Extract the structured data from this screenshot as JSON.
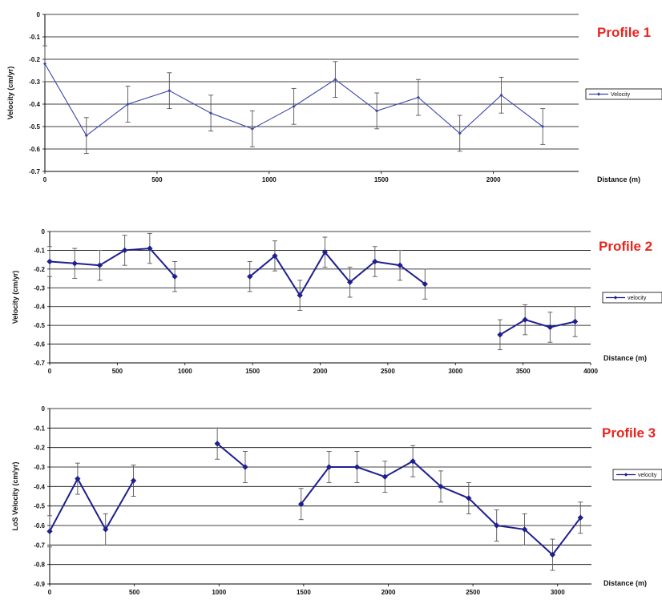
{
  "chart_data": [
    {
      "type": "line",
      "title": "Profile 1",
      "ylabel": "Velocity (cm/yr)",
      "xlabel": "Distance (m)",
      "xlim": [
        0,
        2380
      ],
      "ylim": [
        -0.7,
        0
      ],
      "xticks": [
        0,
        500,
        1000,
        1500,
        2000
      ],
      "xtick_labels": [
        "0",
        "500",
        "1000",
        "1500",
        "2000"
      ],
      "yticks": [
        0,
        -0.1,
        -0.2,
        -0.3,
        -0.4,
        -0.5,
        -0.6,
        -0.7
      ],
      "ytick_labels": [
        "0",
        "-0.1",
        "-0.2",
        "-0.3",
        "-0.4",
        "-0.5",
        "-0.6",
        "-0.7"
      ],
      "grid": true,
      "legend_position": "right",
      "marker_style": "small",
      "series": [
        {
          "name": "Velocity",
          "color": "#3a47a8",
          "segments": [
            {
              "x": [
                0,
                185,
                370,
                555,
                740,
                925,
                1110,
                1295,
                1480,
                1665,
                1850,
                2035,
                2220
              ],
              "y": [
                -0.22,
                -0.54,
                -0.4,
                -0.34,
                -0.44,
                -0.51,
                -0.41,
                -0.29,
                -0.43,
                -0.37,
                -0.53,
                -0.36,
                -0.5
              ],
              "err": [
                0.08,
                0.08,
                0.08,
                0.08,
                0.08,
                0.08,
                0.08,
                0.08,
                0.08,
                0.08,
                0.08,
                0.08,
                0.08
              ]
            }
          ]
        }
      ]
    },
    {
      "type": "line",
      "title": "Profile 2",
      "ylabel": "Velocity (cm/yr)",
      "xlabel": "Distance (m)",
      "xlim": [
        0,
        4000
      ],
      "ylim": [
        -0.7,
        0
      ],
      "xticks": [
        0,
        500,
        1000,
        1500,
        2000,
        2500,
        3000,
        3500,
        4000
      ],
      "xtick_labels": [
        "0",
        "500",
        "1000",
        "1500",
        "2000",
        "2500",
        "3000",
        "3500",
        "4000"
      ],
      "yticks": [
        0,
        -0.1,
        -0.2,
        -0.3,
        -0.4,
        -0.5,
        -0.6,
        -0.7
      ],
      "ytick_labels": [
        "0",
        "-0.1",
        "-0.2",
        "-0.3",
        "-0.4",
        "-0.5",
        "-0.6",
        "-0.7"
      ],
      "grid": true,
      "legend_position": "right",
      "marker_style": "large",
      "series": [
        {
          "name": "velocity",
          "color": "#1f1f8f",
          "segments": [
            {
              "x": [
                0,
                185,
                370,
                555,
                740,
                925
              ],
              "y": [
                -0.16,
                -0.17,
                -0.18,
                -0.1,
                -0.09,
                -0.24
              ],
              "err": [
                0.08,
                0.08,
                0.08,
                0.08,
                0.08,
                0.08
              ]
            },
            {
              "x": [
                1480,
                1665,
                1850,
                2035,
                2220,
                2405,
                2590,
                2775
              ],
              "y": [
                -0.24,
                -0.13,
                -0.34,
                -0.11,
                -0.27,
                -0.16,
                -0.18,
                -0.28
              ],
              "err": [
                0.08,
                0.08,
                0.08,
                0.08,
                0.08,
                0.08,
                0.08,
                0.08
              ]
            },
            {
              "x": [
                3330,
                3515,
                3700,
                3885
              ],
              "y": [
                -0.55,
                -0.47,
                -0.51,
                -0.48
              ],
              "err": [
                0.08,
                0.08,
                0.08,
                0.08
              ]
            }
          ]
        }
      ]
    },
    {
      "type": "line",
      "title": "Profile 3",
      "ylabel": "LoS Velocity (cm/yr)",
      "xlabel": "Distance (m)",
      "xlim": [
        0,
        3200
      ],
      "ylim": [
        -0.9,
        0
      ],
      "xticks": [
        0,
        500,
        1000,
        1500,
        2000,
        2500,
        3000
      ],
      "xtick_labels": [
        "0",
        "500",
        "1000",
        "1500",
        "2000",
        "2500",
        "3000"
      ],
      "yticks": [
        0,
        -0.1,
        -0.2,
        -0.3,
        -0.4,
        -0.5,
        -0.6,
        -0.7,
        -0.8,
        -0.9
      ],
      "ytick_labels": [
        "0",
        "-0.1",
        "-0.2",
        "-0.3",
        "-0.4",
        "-0.5",
        "-0.6",
        "-0.7",
        "-0.8",
        "-0.9"
      ],
      "grid": true,
      "legend_position": "right",
      "marker_style": "large",
      "series": [
        {
          "name": "velocity",
          "color": "#1f1f8f",
          "segments": [
            {
              "x": [
                0,
                165,
                330,
                495
              ],
              "y": [
                -0.63,
                -0.36,
                -0.62,
                -0.37
              ],
              "err": [
                0.08,
                0.08,
                0.08,
                0.08
              ]
            },
            {
              "x": [
                990,
                1155
              ],
              "y": [
                -0.18,
                -0.3
              ],
              "err": [
                0.08,
                0.08
              ]
            },
            {
              "x": [
                1485,
                1650,
                1815,
                1980,
                2145,
                2310,
                2475,
                2640,
                2805,
                2970,
                3135
              ],
              "y": [
                -0.49,
                -0.3,
                -0.3,
                -0.35,
                -0.27,
                -0.4,
                -0.46,
                -0.6,
                -0.62,
                -0.75,
                -0.56
              ],
              "err": [
                0.08,
                0.08,
                0.08,
                0.08,
                0.08,
                0.08,
                0.08,
                0.08,
                0.08,
                0.08,
                0.08
              ]
            }
          ]
        }
      ]
    }
  ],
  "colors": {
    "title": "#e8251f",
    "grid": "#000000",
    "errorbar": "#555555"
  }
}
